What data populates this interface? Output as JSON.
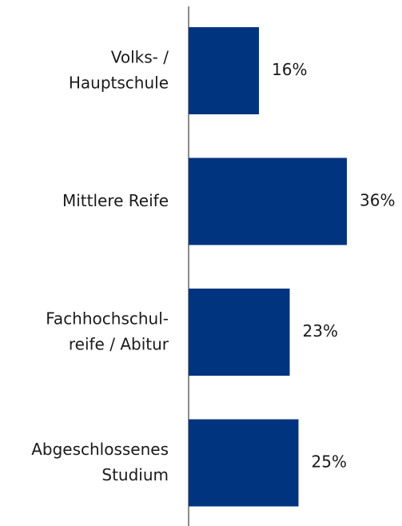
{
  "chart_data": {
    "type": "hbar",
    "categories": [
      "Volks- /\nHauptschule",
      "Mittlere Reife",
      "Fachhochschul-\nreife / Abitur",
      "Abgeschlossenes\nStudium"
    ],
    "values": [
      16,
      36,
      23,
      25
    ],
    "value_labels": [
      "16%",
      "36%",
      "23%",
      "25%"
    ],
    "color": "#00347f"
  }
}
